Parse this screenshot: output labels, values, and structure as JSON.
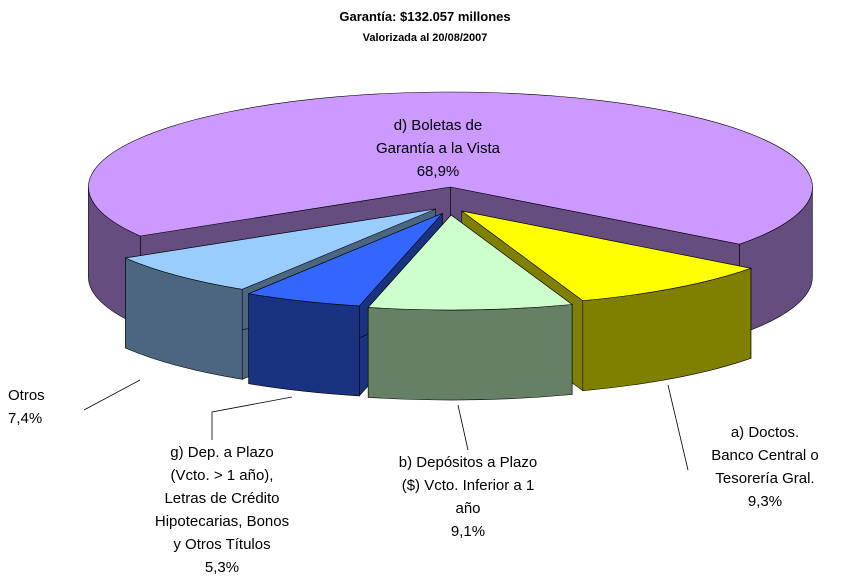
{
  "chart_data": {
    "type": "pie3d",
    "title": "Garantía: $132.057 millones",
    "subtitle": "Valorizada al 20/08/2007",
    "categories": [
      [
        "a) Doctos.",
        "Banco Central o",
        "Tesorería Gral."
      ],
      [
        "b) Depósitos a Plazo",
        "($) Vcto. Inferior a 1",
        "año"
      ],
      [
        "g) Dep. a Plazo",
        "(Vcto. > 1 año),",
        "Letras de Crédito",
        "Hipotecarias, Bonos",
        "y Otros Títulos"
      ],
      [
        "Otros"
      ],
      [
        "d) Boletas de",
        "Garantía a la Vista"
      ]
    ],
    "values": [
      9.3,
      9.1,
      5.3,
      7.4,
      68.9
    ],
    "value_labels": [
      "9,3%",
      "9,1%",
      "5,3%",
      "7,4%",
      "68,9%"
    ],
    "colors": [
      "#ffff00",
      "#ccffcc",
      "#3366ff",
      "#99ccff",
      "#cc99ff"
    ]
  }
}
